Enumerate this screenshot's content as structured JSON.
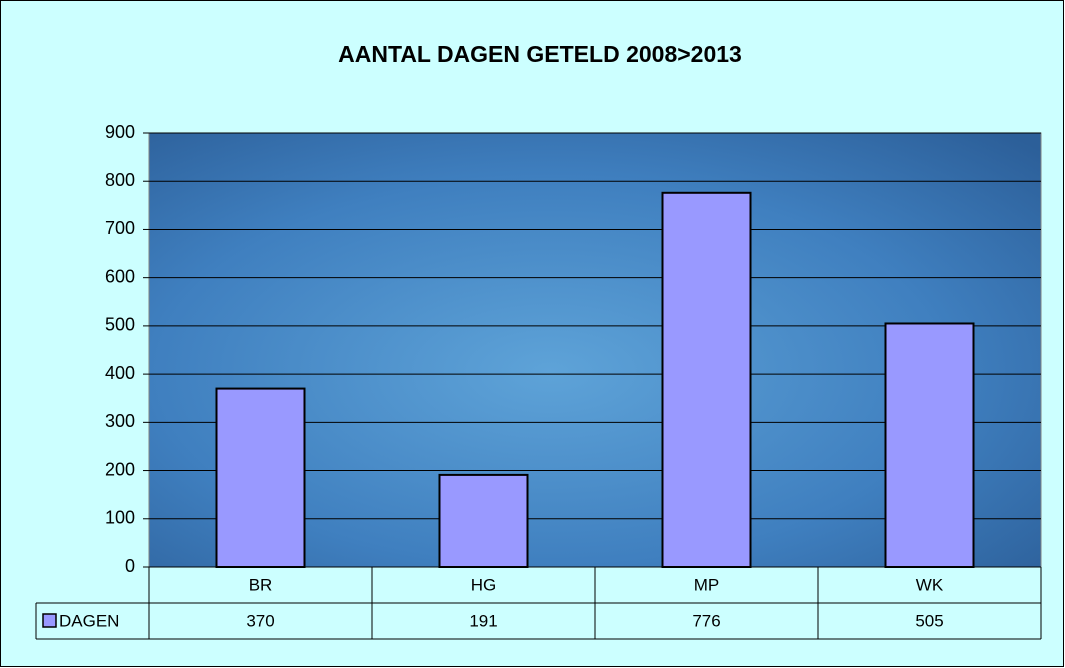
{
  "chart_data": {
    "type": "bar",
    "title": "AANTAL DAGEN GETELD 2008>2013",
    "categories": [
      "BR",
      "HG",
      "MP",
      "WK"
    ],
    "series": [
      {
        "name": "DAGEN",
        "color": "#9999ff",
        "values": [
          370,
          191,
          776,
          505
        ]
      }
    ],
    "ylim": [
      0,
      900
    ],
    "yticks": [
      0,
      100,
      200,
      300,
      400,
      500,
      600,
      700,
      800,
      900
    ],
    "grid": true
  }
}
